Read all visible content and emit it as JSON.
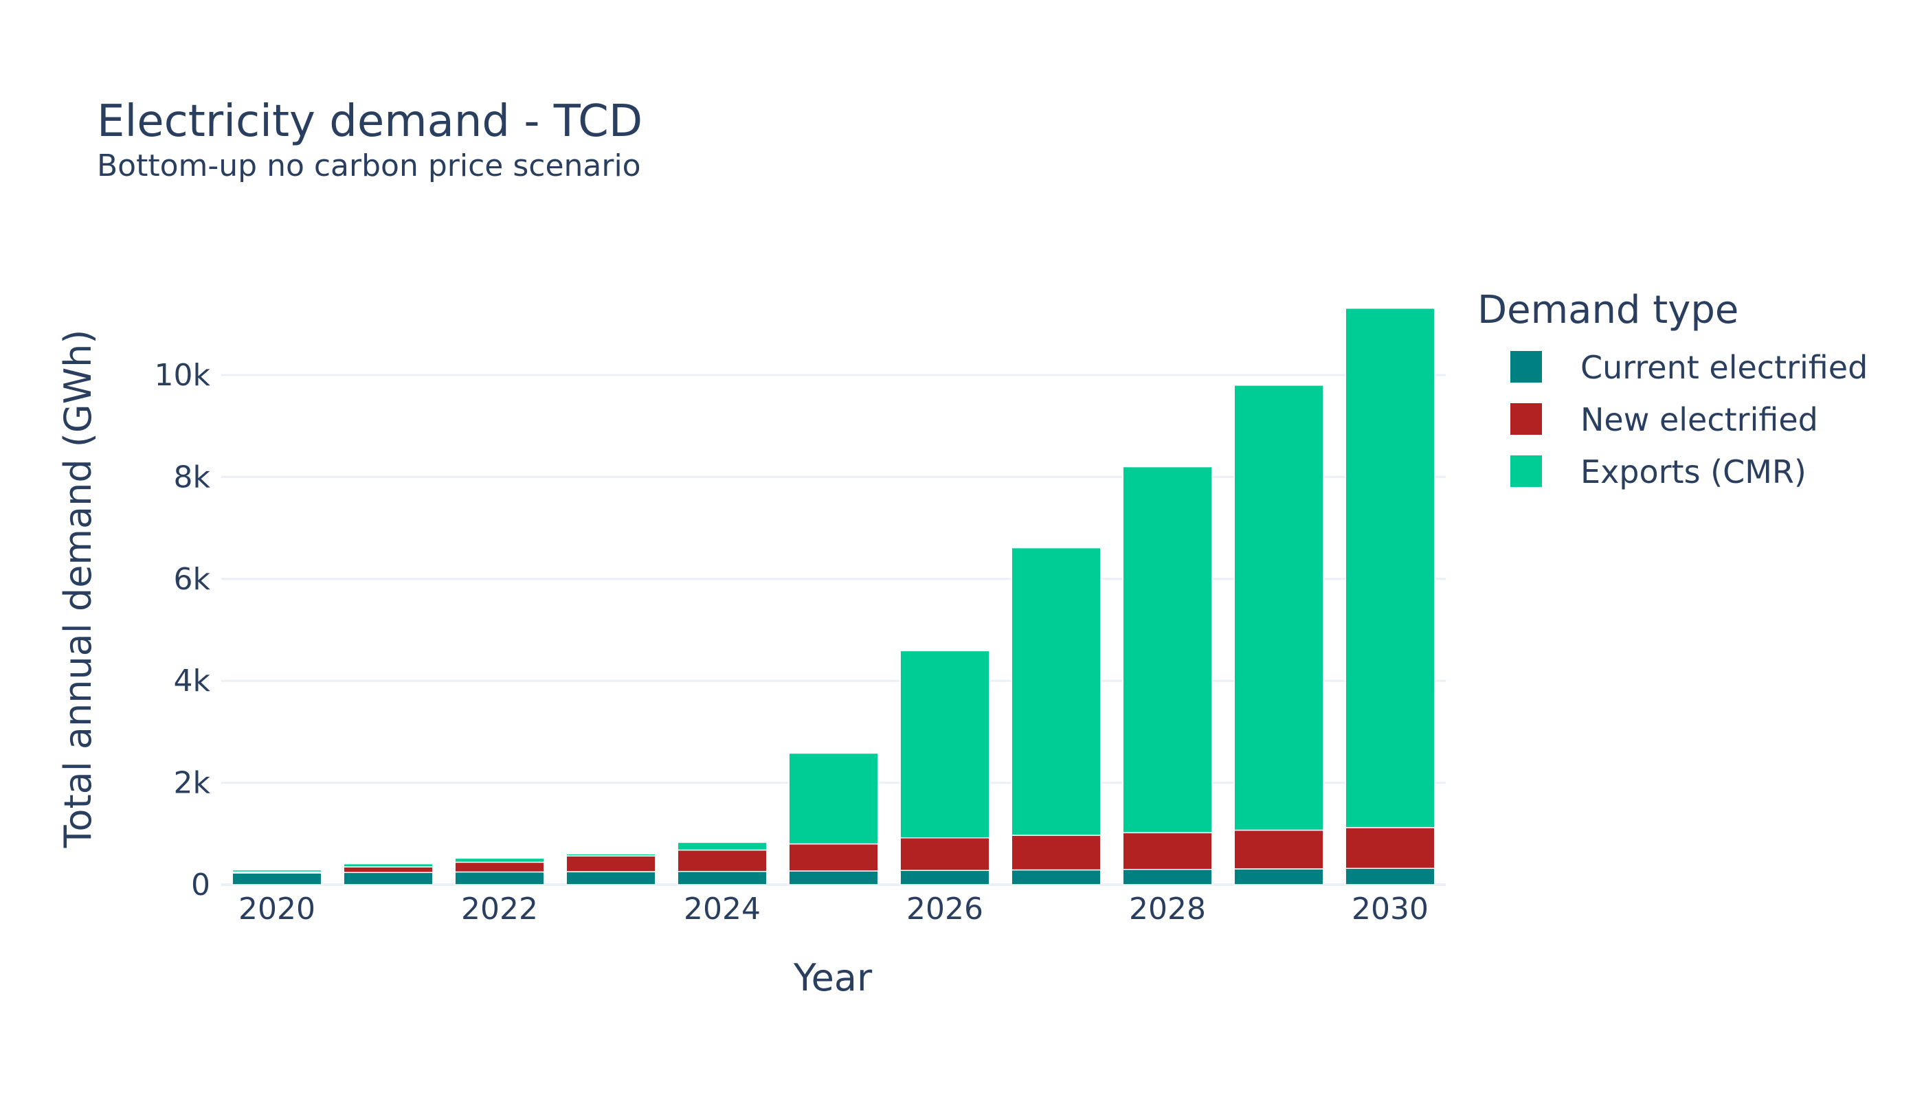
{
  "chart_data": {
    "type": "bar",
    "stacked": true,
    "title": "Electricity demand - TCD",
    "subtitle": "Bottom-up no carbon price scenario",
    "xlabel": "Year",
    "ylabel": "Total annual demand (GWh)",
    "x": [
      2020,
      2021,
      2022,
      2023,
      2024,
      2025,
      2026,
      2027,
      2028,
      2029,
      2030
    ],
    "x_ticks": [
      "2020",
      "2022",
      "2024",
      "2026",
      "2028",
      "2030"
    ],
    "y_ticks": [
      "0",
      "2k",
      "4k",
      "6k",
      "8k",
      "10k"
    ],
    "ylim": [
      0,
      11900
    ],
    "grid": true,
    "legend": {
      "title": "Demand type",
      "placement": "right"
    },
    "series": [
      {
        "name": "Current electrified",
        "color": "#008080",
        "values": [
          230,
          240,
          250,
          255,
          260,
          270,
          280,
          290,
          300,
          310,
          320
        ]
      },
      {
        "name": "New electrified",
        "color": "#b22222",
        "values": [
          20,
          110,
          190,
          310,
          420,
          530,
          640,
          680,
          720,
          760,
          800
        ]
      },
      {
        "name": "Exports (CMR)",
        "color": "#00cc96",
        "values": [
          40,
          60,
          80,
          40,
          150,
          1780,
          3670,
          5640,
          7180,
          8730,
          10190
        ]
      }
    ]
  }
}
